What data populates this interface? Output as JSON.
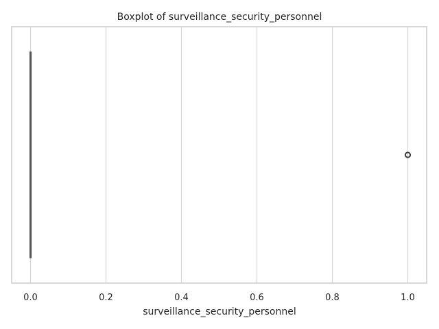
{
  "chart_data": {
    "type": "boxplot",
    "title": "Boxplot of surveillance_security_personnel",
    "xlabel": "surveillance_security_personnel",
    "ylabel": "",
    "xlim": [
      -0.05,
      1.05
    ],
    "xticks": [
      0.0,
      0.2,
      0.4,
      0.6,
      0.8,
      1.0
    ],
    "xtick_labels": [
      "0.0",
      "0.2",
      "0.4",
      "0.6",
      "0.8",
      "1.0"
    ],
    "orientation": "horizontal",
    "grid": "vertical",
    "box": {
      "min": 0.0,
      "q1": 0.0,
      "median": 0.0,
      "q3": 0.0,
      "max": 0.0
    },
    "outliers": [
      1.0
    ],
    "colors": {
      "box_line": "#555555",
      "grid": "#d6d6d6",
      "frame": "#cccccc"
    }
  }
}
